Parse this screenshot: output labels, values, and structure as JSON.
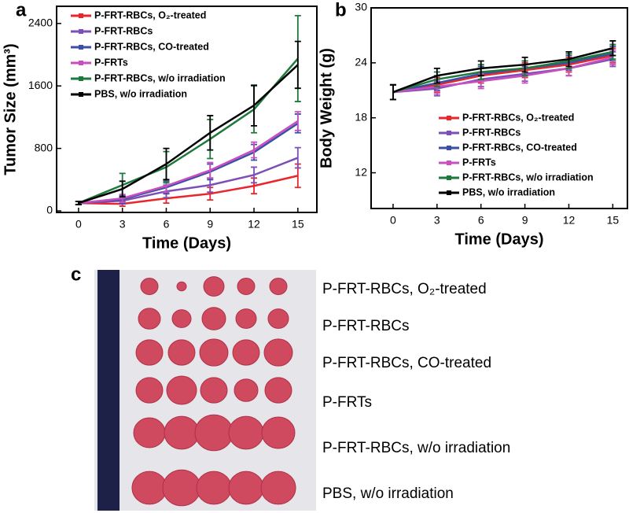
{
  "chart_data": [
    {
      "type": "line",
      "panel_label": "a",
      "x_label": "Time (Days)",
      "y_label": "Tumor Size (mm³)",
      "x": [
        0,
        3,
        6,
        9,
        12,
        15
      ],
      "xlim": [
        -1.5,
        16.3
      ],
      "xticks": [
        0,
        3,
        6,
        9,
        12,
        15
      ],
      "ylim": [
        -20,
        2620
      ],
      "yticks": [
        0,
        800,
        1600,
        2400
      ],
      "legend": "top-left",
      "series": [
        {
          "name": "P-FRT-RBCs, O₂-treated",
          "color": "#e8262b",
          "values": [
            100,
            90,
            160,
            220,
            320,
            450
          ],
          "errors": [
            20,
            30,
            60,
            80,
            100,
            150
          ]
        },
        {
          "name": "P-FRT-RBCs",
          "color": "#7b4fb5",
          "values": [
            100,
            130,
            250,
            330,
            460,
            680
          ],
          "errors": [
            20,
            40,
            80,
            90,
            100,
            130
          ]
        },
        {
          "name": "P-FRT-RBCs, CO-treated",
          "color": "#3a4fa6",
          "values": [
            100,
            150,
            300,
            500,
            750,
            1120
          ],
          "errors": [
            20,
            50,
            80,
            100,
            100,
            120
          ]
        },
        {
          "name": "P-FRTs",
          "color": "#c94fc0",
          "values": [
            100,
            160,
            320,
            520,
            780,
            1150
          ],
          "errors": [
            20,
            50,
            80,
            100,
            100,
            120
          ]
        },
        {
          "name": "P-FRT-RBCs, w/o irradiation",
          "color": "#1e7a3c",
          "values": [
            100,
            330,
            560,
            920,
            1300,
            1950
          ],
          "errors": [
            20,
            150,
            200,
            250,
            300,
            550
          ]
        },
        {
          "name": "PBS, w/o irradiation",
          "color": "#000000",
          "values": [
            100,
            280,
            600,
            1000,
            1350,
            1870
          ],
          "errors": [
            20,
            100,
            200,
            220,
            260,
            300
          ]
        }
      ]
    },
    {
      "type": "line",
      "panel_label": "b",
      "x_label": "Time (Days)",
      "y_label": "Body Weight (g)",
      "x": [
        0,
        3,
        6,
        9,
        12,
        15
      ],
      "xlim": [
        -1.5,
        16
      ],
      "xticks": [
        0,
        3,
        6,
        9,
        12,
        15
      ],
      "ylim": [
        8.1,
        30
      ],
      "yticks": [
        12,
        18,
        24,
        30
      ],
      "legend": "bottom-right",
      "series": [
        {
          "name": "P-FRT-RBCs, O₂-treated",
          "color": "#e8262b",
          "values": [
            20.8,
            21.6,
            22.6,
            23.2,
            23.8,
            24.8
          ],
          "errors": [
            0.8,
            0.8,
            0.8,
            0.8,
            0.8,
            0.8
          ]
        },
        {
          "name": "P-FRT-RBCs",
          "color": "#7b4fb5",
          "values": [
            20.8,
            21.2,
            22.2,
            22.8,
            23.4,
            24.4
          ],
          "errors": [
            0.8,
            0.8,
            0.8,
            0.8,
            0.8,
            0.8
          ]
        },
        {
          "name": "P-FRT-RBCs, CO-treated",
          "color": "#3a4fa6",
          "values": [
            20.8,
            21.8,
            22.8,
            23.4,
            24.0,
            25.0
          ],
          "errors": [
            0.8,
            0.8,
            0.8,
            0.8,
            0.8,
            0.8
          ]
        },
        {
          "name": "P-FRTs",
          "color": "#c94fc0",
          "values": [
            20.8,
            21.4,
            22.0,
            22.6,
            23.4,
            24.6
          ],
          "errors": [
            0.8,
            0.8,
            0.8,
            0.8,
            0.8,
            0.8
          ]
        },
        {
          "name": "P-FRT-RBCs, w/o irradiation",
          "color": "#1e7a3c",
          "values": [
            20.8,
            22.2,
            23.0,
            23.4,
            24.2,
            25.2
          ],
          "errors": [
            0.8,
            0.8,
            0.8,
            0.8,
            0.8,
            0.8
          ]
        },
        {
          "name": "PBS, w/o irradiation",
          "color": "#000000",
          "values": [
            20.8,
            22.6,
            23.4,
            23.8,
            24.4,
            25.6
          ],
          "errors": [
            0.8,
            0.8,
            0.8,
            0.8,
            0.8,
            0.8
          ]
        }
      ]
    }
  ],
  "panel_c": {
    "panel_label": "c",
    "labels": [
      "P-FRT-RBCs, O₂-treated",
      "P-FRT-RBCs",
      "P-FRT-RBCs, CO-treated",
      "P-FRTs",
      "P-FRT-RBCs, w/o irradiation",
      "PBS, w/o irradiation"
    ]
  }
}
